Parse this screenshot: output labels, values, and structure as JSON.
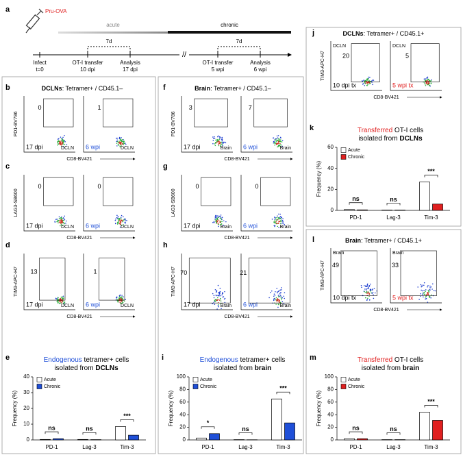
{
  "panel_a": {
    "letter": "a",
    "drug": "Pru-OVA",
    "phases": [
      "acute",
      "chronic"
    ],
    "break": "//",
    "events": [
      {
        "label": "Infect",
        "time": "t=0"
      },
      {
        "label": "OT-I transfer",
        "time": "10 dpi"
      },
      {
        "label": "Analysis",
        "time": "17 dpi"
      },
      {
        "label": "OT-I transfer",
        "time": "5 wpi"
      },
      {
        "label": "Analysis",
        "time": "6 wpi"
      }
    ],
    "intervals": [
      "7d",
      "7d"
    ]
  },
  "titles": [
    {
      "bold": "DCLNs",
      "rest": ": Tetramer+ / CD45.1–"
    },
    {
      "bold": "Brain",
      "rest": ": Tetramer+ / CD45.1–"
    },
    {
      "bold": "DCLNs",
      "rest": ": Tetramer+ / CD45.1+"
    },
    {
      "bold": "Brain",
      "rest": ": Tetramer+ / CD45.1+"
    }
  ],
  "flow_panels": [
    {
      "letter": "b",
      "y_label": "PD1-BV786",
      "x_label": "CD8-BV421",
      "plots": [
        {
          "gate": "0",
          "time": "17 dpi",
          "color": "#000000",
          "tissue": "DCLN"
        },
        {
          "gate": "1",
          "time": "6 wpi",
          "color": "#1f4fd8",
          "tissue": "DCLN"
        }
      ]
    },
    {
      "letter": "c",
      "y_label": "LAG3-SB600",
      "x_label": "CD8-BV421",
      "plots": [
        {
          "gate": "0",
          "time": "17 dpi",
          "color": "#000000",
          "tissue": "DCLN"
        },
        {
          "gate": "0",
          "time": "6 wpi",
          "color": "#1f4fd8",
          "tissue": "DCLN"
        }
      ]
    },
    {
      "letter": "d",
      "y_label": "TIM3-APC-H7",
      "x_label": "CD8-BV421",
      "plots": [
        {
          "gate": "13",
          "time": "17 dpi",
          "color": "#000000",
          "tissue": "DCLN"
        },
        {
          "gate": "1",
          "time": "6 wpi",
          "color": "#1f4fd8",
          "tissue": "DCLN"
        }
      ]
    },
    {
      "letter": "f",
      "y_label": "PD1-BV786",
      "x_label": "CD8-BV421",
      "plots": [
        {
          "gate": "3",
          "time": "17 dpi",
          "color": "#000000",
          "tissue": "Brain"
        },
        {
          "gate": "7",
          "time": "6 wpi",
          "color": "#1f4fd8",
          "tissue": "Brain"
        }
      ]
    },
    {
      "letter": "g",
      "y_label": "LAG3-SB600",
      "x_label": "CD8-BV421",
      "plots": [
        {
          "gate": "0",
          "time": "17 dpi",
          "color": "#000000",
          "tissue": "Brain"
        },
        {
          "gate": "0",
          "time": "6 wpi",
          "color": "#1f4fd8",
          "tissue": "Brain"
        }
      ]
    },
    {
      "letter": "h",
      "y_label": "TIM3-APC-H7",
      "x_label": "CD8-BV421",
      "plots": [
        {
          "gate": "70",
          "time": "17 dpi",
          "color": "#000000",
          "tissue": "Brain"
        },
        {
          "gate": "21",
          "time": "6 wpi",
          "color": "#1f4fd8",
          "tissue": "Brain"
        }
      ]
    },
    {
      "letter": "j",
      "y_label": "TIM3-APC-H7",
      "x_label": "CD8-BV421",
      "plots": [
        {
          "gate": "20",
          "time": "10 dpi tx",
          "color": "#000000",
          "tissue": "DCLN"
        },
        {
          "gate": "5",
          "time": "5 wpi tx",
          "color": "#e02020",
          "tissue": "DCLN"
        }
      ]
    },
    {
      "letter": "l",
      "y_label": "TIM3-APC-H7",
      "x_label": "CD8-BV421",
      "plots": [
        {
          "gate": "49",
          "time": "10 dpi tx",
          "color": "#000000",
          "tissue": "Brain"
        },
        {
          "gate": "33",
          "time": "5 wpi tx",
          "color": "#e02020",
          "tissue": "Brain"
        }
      ]
    }
  ],
  "bar_panels": [
    {
      "letter": "e",
      "type": "bar",
      "accent": "Endogenous",
      "accent_color": "#1f4fd8",
      "rest": " tetramer+ cells",
      "sub": "isolated from ",
      "sub_bold": "DCLNs",
      "y_label": "Frequency (%)",
      "categories": [
        "PD-1",
        "Lag-3",
        "Tim-3"
      ],
      "series": [
        {
          "name": "Acute",
          "color": "#ffffff",
          "values": [
            0.3,
            0.3,
            8.5
          ]
        },
        {
          "name": "Chronic",
          "color": "#1f4fd8",
          "values": [
            0.8,
            0.2,
            3
          ]
        }
      ],
      "significance": [
        "ns",
        "ns",
        "***"
      ],
      "ylim": [
        0,
        40
      ],
      "yticks": [
        0,
        10,
        20,
        30,
        40
      ]
    },
    {
      "letter": "i",
      "type": "bar",
      "accent": "Endogenous",
      "accent_color": "#1f4fd8",
      "rest": " tetramer+ cells",
      "sub": "isolated from ",
      "sub_bold": "brain",
      "y_label": "Frequency (%)",
      "categories": [
        "PD-1",
        "Lag-3",
        "Tim-3"
      ],
      "series": [
        {
          "name": "Acute",
          "color": "#ffffff",
          "values": [
            3,
            0.5,
            65
          ]
        },
        {
          "name": "Chronic",
          "color": "#1f4fd8",
          "values": [
            10,
            0.3,
            27
          ]
        }
      ],
      "significance": [
        "*",
        "ns",
        "***"
      ],
      "ylim": [
        0,
        100
      ],
      "yticks": [
        0,
        20,
        40,
        60,
        80,
        100
      ]
    },
    {
      "letter": "k",
      "type": "bar",
      "accent": "Transferred",
      "accent_color": "#e02020",
      "rest": " OT-I cells",
      "sub": "isolated from ",
      "sub_bold": "DCLNs",
      "y_label": "Frequency (%)",
      "categories": [
        "PD-1",
        "Lag-3",
        "Tim-3"
      ],
      "series": [
        {
          "name": "Acute",
          "color": "#ffffff",
          "values": [
            0.8,
            0.3,
            27
          ]
        },
        {
          "name": "Chronic",
          "color": "#e02020",
          "values": [
            0.5,
            0.3,
            6
          ]
        }
      ],
      "significance": [
        "ns",
        "ns",
        "***"
      ],
      "ylim": [
        0,
        60
      ],
      "yticks": [
        0,
        20,
        40,
        60
      ]
    },
    {
      "letter": "m",
      "type": "bar",
      "accent": "Transferred",
      "accent_color": "#e02020",
      "rest": " OT-I cells",
      "sub": "isolated from ",
      "sub_bold": "brain",
      "y_label": "Frequency (%)",
      "categories": [
        "PD-1",
        "Lag-3",
        "Tim-3"
      ],
      "series": [
        {
          "name": "Acute",
          "color": "#ffffff",
          "values": [
            2,
            0.5,
            44
          ]
        },
        {
          "name": "Chronic",
          "color": "#e02020",
          "values": [
            2,
            0.5,
            31
          ]
        }
      ],
      "significance": [
        "ns",
        "ns",
        "***"
      ],
      "ylim": [
        0,
        100
      ],
      "yticks": [
        0,
        20,
        40,
        60,
        80,
        100
      ]
    }
  ]
}
